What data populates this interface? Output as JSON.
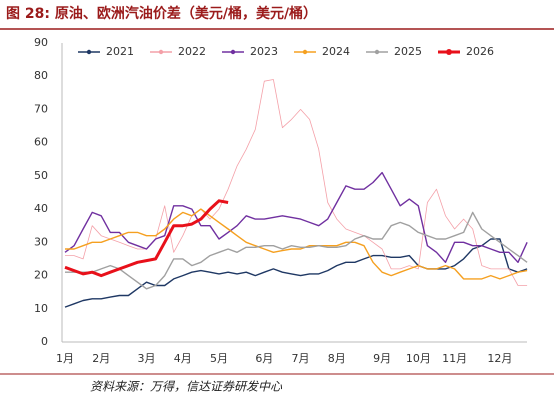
{
  "chart_data": {
    "type": "line",
    "title": "图 28:  原油、欧洲汽油价差（美元/桶，美元/桶）",
    "source": "资料来源：万得，信达证券研发中心",
    "categories": [
      "1月",
      null,
      null,
      null,
      "2月",
      null,
      null,
      null,
      null,
      "3月",
      null,
      null,
      null,
      "4月",
      null,
      null,
      null,
      "5月",
      null,
      null,
      null,
      null,
      "6月",
      null,
      null,
      null,
      "7月",
      null,
      null,
      null,
      "8月",
      null,
      null,
      null,
      null,
      "9月",
      null,
      null,
      null,
      "10月",
      null,
      null,
      null,
      "11月",
      null,
      null,
      null,
      null,
      "12月",
      null,
      null,
      null
    ],
    "ylim": [
      0,
      90
    ],
    "yticks": [
      0,
      10,
      20,
      30,
      40,
      50,
      60,
      70,
      80,
      90
    ],
    "grid": false,
    "legend": "top",
    "series": [
      {
        "name": "2021",
        "color": "#1f3864",
        "values": [
          10.5,
          11.5,
          12.5,
          13,
          13,
          13.5,
          14,
          14,
          16,
          18,
          17,
          17,
          19,
          20,
          21,
          21.5,
          21,
          20.5,
          21,
          20.5,
          21,
          20,
          21,
          22,
          21,
          20.5,
          20,
          20.5,
          20.5,
          21.5,
          23,
          24,
          24,
          25,
          26,
          26,
          25.5,
          25.5,
          26,
          23,
          22,
          22,
          22,
          23,
          25,
          28,
          29,
          31,
          31,
          22,
          21,
          22
        ]
      },
      {
        "name": "2022",
        "color": "#f4a0a8",
        "values": [
          26,
          26,
          25,
          35,
          32,
          31,
          30,
          29,
          28,
          28,
          31,
          41,
          27,
          32,
          38,
          40,
          37,
          40,
          46,
          53,
          58,
          64,
          78.5,
          79,
          64.5,
          67,
          70,
          67,
          58,
          42,
          37,
          34,
          33,
          32,
          30,
          28,
          22,
          22,
          23,
          22,
          42,
          46,
          38,
          34,
          37,
          34,
          23,
          22,
          22,
          22,
          17,
          17
        ]
      },
      {
        "name": "2023",
        "color": "#7030a0",
        "values": [
          27,
          29,
          34,
          39,
          38,
          33,
          33,
          30,
          29,
          28,
          31,
          32,
          41,
          41,
          40,
          35,
          35,
          31,
          33,
          35,
          38,
          37,
          37,
          37.5,
          38,
          37.5,
          37,
          36,
          35,
          37,
          42,
          47,
          46,
          46,
          48,
          51,
          46,
          41,
          43,
          41,
          29,
          27,
          24,
          30,
          30,
          29,
          29,
          28,
          27,
          27,
          24,
          30
        ]
      },
      {
        "name": "2024",
        "color": "#f5a020",
        "values": [
          28,
          28,
          29,
          30,
          30,
          31,
          32,
          33,
          33,
          32,
          32,
          34,
          37,
          39,
          38,
          40,
          38,
          36,
          34,
          32,
          30,
          29,
          28,
          27,
          27.5,
          28,
          28,
          29,
          29,
          29,
          29,
          30,
          30,
          29,
          24,
          21,
          20,
          21,
          22,
          23,
          22,
          22,
          23,
          22,
          19,
          19,
          19,
          20,
          19,
          20,
          21,
          21.5
        ]
      },
      {
        "name": "2025",
        "color": "#a0a0a0",
        "values": [
          21,
          21,
          21,
          21,
          22,
          23,
          22,
          20,
          18,
          16,
          17,
          20,
          25,
          25,
          23,
          24,
          26,
          27,
          28,
          27,
          28.5,
          28.5,
          29,
          29,
          28,
          29,
          28.5,
          28.5,
          29,
          28.5,
          28.5,
          29,
          31,
          32,
          31,
          31,
          35,
          36,
          35,
          33,
          32,
          31,
          31,
          32,
          33,
          39,
          34,
          32,
          30,
          28,
          26,
          24
        ]
      },
      {
        "name": "2026",
        "color": "#e8101a",
        "values": [
          22.5,
          21.5,
          20.5,
          21,
          20,
          21,
          22,
          23,
          24,
          24.5,
          25,
          30,
          35,
          35,
          35.5,
          37,
          40,
          42.5,
          42,
          null,
          null,
          null,
          null,
          null,
          null,
          null,
          null,
          null,
          null,
          null,
          null,
          null,
          null,
          null,
          null,
          null,
          null,
          null,
          null,
          null,
          null,
          null,
          null,
          null,
          null,
          null,
          null,
          null,
          null,
          null,
          null,
          null
        ]
      }
    ]
  }
}
